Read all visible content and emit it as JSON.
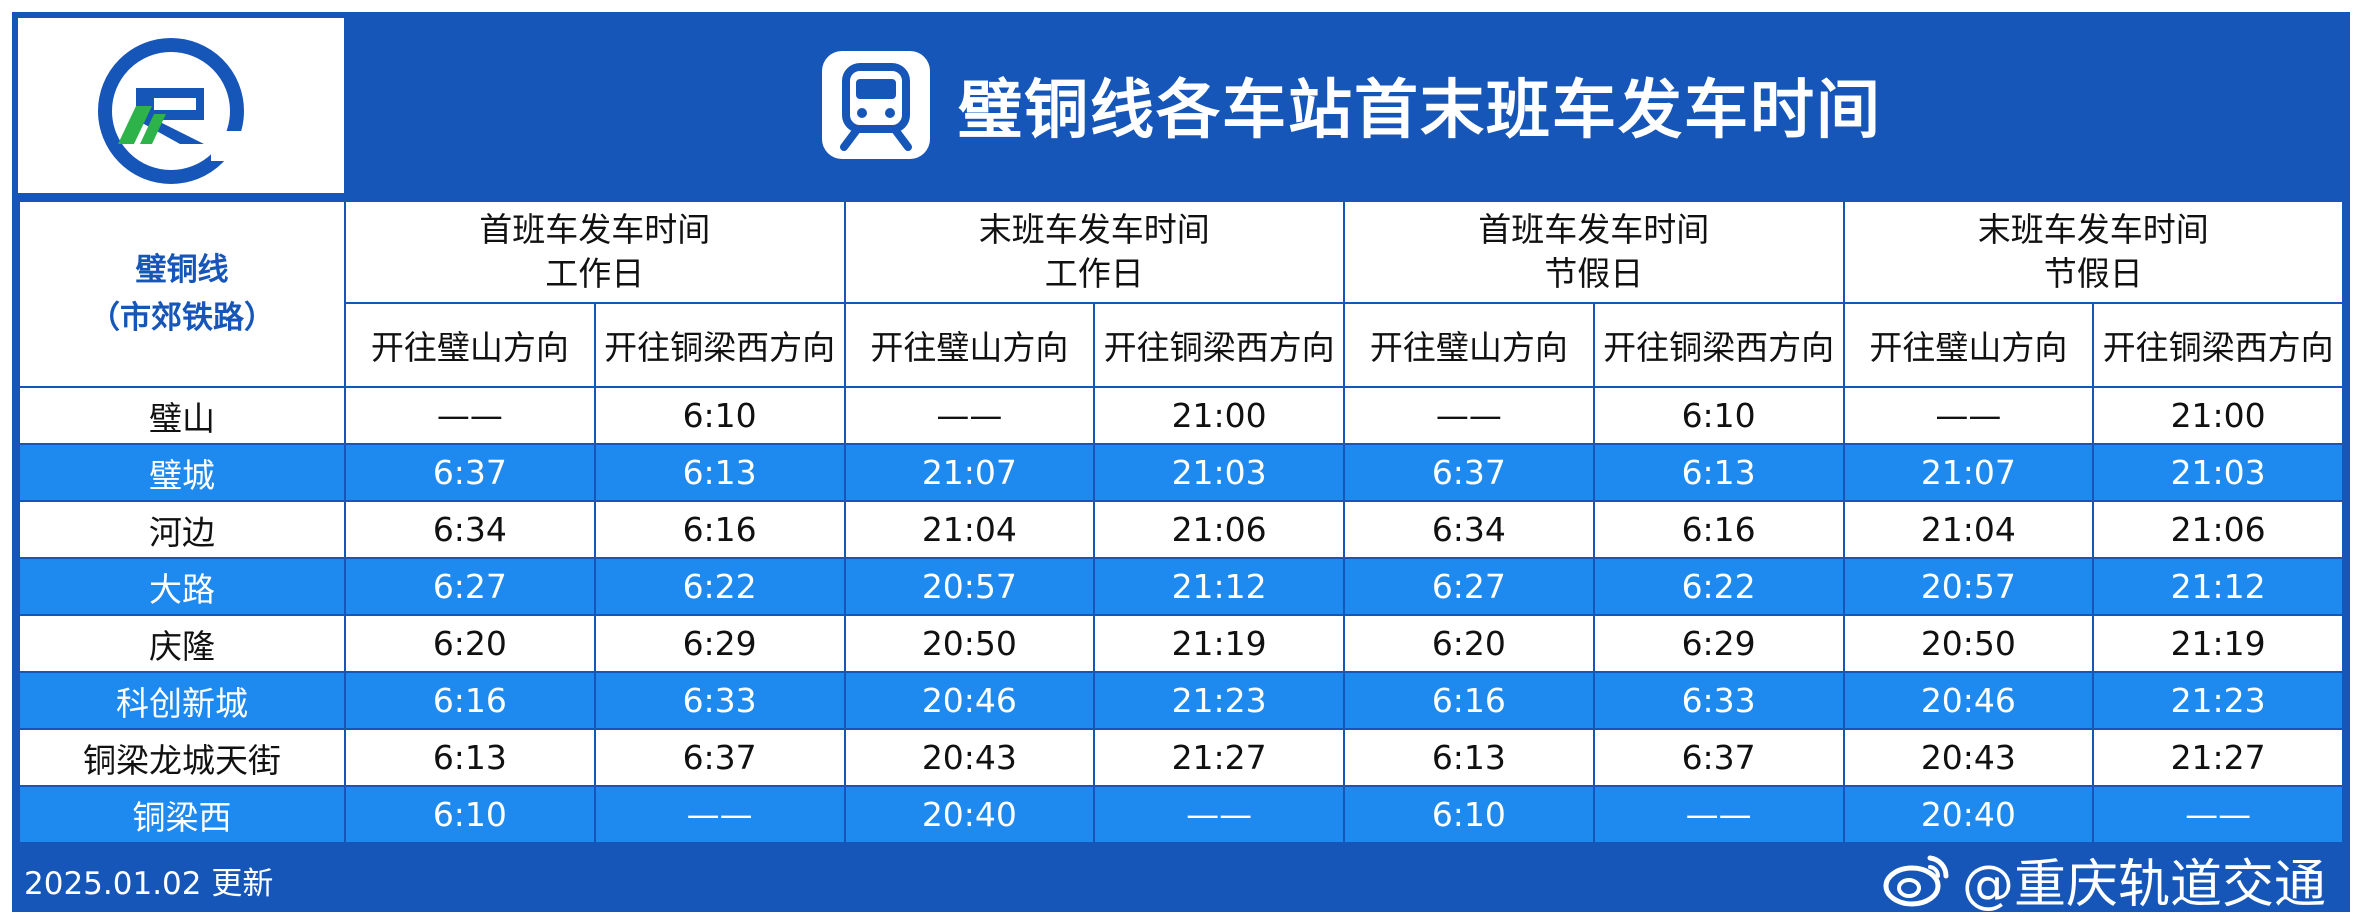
{
  "header": {
    "title": "璧铜线各车站首末班车发车时间",
    "logo_icon": "rail-transit-logo",
    "title_icon": "metro-train-icon"
  },
  "table": {
    "line_name": "璧铜线",
    "line_type": "（市郊铁路）",
    "groups": [
      {
        "line1": "首班车发车时间",
        "line2": "工作日"
      },
      {
        "line1": "末班车发车时间",
        "line2": "工作日"
      },
      {
        "line1": "首班车发车时间",
        "line2": "节假日"
      },
      {
        "line1": "末班车发车时间",
        "line2": "节假日"
      }
    ],
    "directions": [
      "开往璧山方向",
      "开往铜梁西方向",
      "开往璧山方向",
      "开往铜梁西方向",
      "开往璧山方向",
      "开往铜梁西方向",
      "开往璧山方向",
      "开往铜梁西方向"
    ],
    "rows": [
      {
        "station": "璧山",
        "times": [
          "——",
          "6:10",
          "——",
          "21:00",
          "——",
          "6:10",
          "——",
          "21:00"
        ]
      },
      {
        "station": "璧城",
        "times": [
          "6:37",
          "6:13",
          "21:07",
          "21:03",
          "6:37",
          "6:13",
          "21:07",
          "21:03"
        ]
      },
      {
        "station": "河边",
        "times": [
          "6:34",
          "6:16",
          "21:04",
          "21:06",
          "6:34",
          "6:16",
          "21:04",
          "21:06"
        ]
      },
      {
        "station": "大路",
        "times": [
          "6:27",
          "6:22",
          "20:57",
          "21:12",
          "6:27",
          "6:22",
          "20:57",
          "21:12"
        ]
      },
      {
        "station": "庆隆",
        "times": [
          "6:20",
          "6:29",
          "20:50",
          "21:19",
          "6:20",
          "6:29",
          "20:50",
          "21:19"
        ]
      },
      {
        "station": "科创新城",
        "times": [
          "6:16",
          "6:33",
          "20:46",
          "21:23",
          "6:16",
          "6:33",
          "20:46",
          "21:23"
        ]
      },
      {
        "station": "铜梁龙城天街",
        "times": [
          "6:13",
          "6:37",
          "20:43",
          "21:27",
          "6:13",
          "6:37",
          "20:43",
          "21:27"
        ]
      },
      {
        "station": "铜梁西",
        "times": [
          "6:10",
          "——",
          "20:40",
          "——",
          "6:10",
          "——",
          "20:40",
          "——"
        ]
      }
    ]
  },
  "footer": {
    "updated": "2025.01.02 更新",
    "watermark": "@重庆轨道交通",
    "watermark_icon": "weibo-icon"
  },
  "colors": {
    "primary": "#1656b8",
    "row_alt": "#1e8af0",
    "logo_green": "#2db34a"
  }
}
